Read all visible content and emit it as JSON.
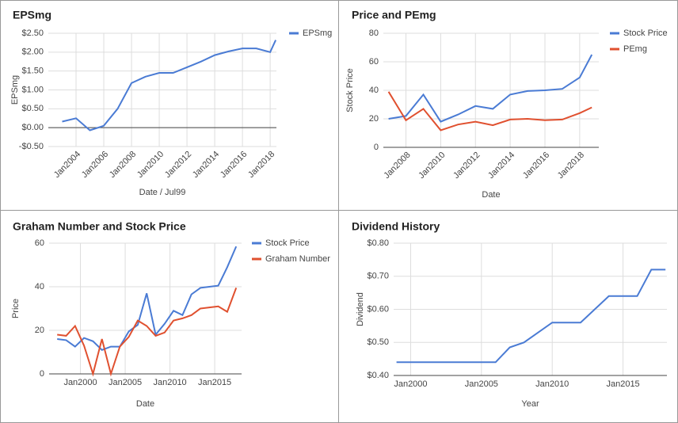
{
  "chart_data": [
    {
      "type": "line",
      "title": "EPSmg",
      "xlabel": "Date / Jul99",
      "ylabel": "EPSmg",
      "x": [
        2003,
        2004,
        2005,
        2006,
        2007,
        2008,
        2009,
        2010,
        2011,
        2012,
        2013,
        2014,
        2015,
        2016,
        2017,
        2018,
        2018.4
      ],
      "series": [
        {
          "name": "EPSmg",
          "color": "#4a7bd4",
          "values": [
            0.16,
            0.25,
            -0.07,
            0.05,
            0.5,
            1.18,
            1.35,
            1.45,
            1.45,
            1.6,
            1.75,
            1.92,
            2.02,
            2.1,
            2.1,
            2.0,
            2.32
          ]
        }
      ],
      "xlim": [
        2002,
        2018.45
      ],
      "xticks": [
        {
          "value": 2004,
          "label": "Jan2004"
        },
        {
          "value": 2006,
          "label": "Jan2006"
        },
        {
          "value": 2008,
          "label": "Jan2008"
        },
        {
          "value": 2010,
          "label": "Jan2010"
        },
        {
          "value": 2012,
          "label": "Jan2012"
        },
        {
          "value": 2014,
          "label": "Jan2014"
        },
        {
          "value": 2016,
          "label": "Jan2016"
        },
        {
          "value": 2018,
          "label": "Jan2018"
        }
      ],
      "ylim": [
        -0.5,
        2.5
      ],
      "yticks": [
        {
          "value": -0.5,
          "label": "-$0.50"
        },
        {
          "value": 0,
          "label": "$0.00"
        },
        {
          "value": 0.5,
          "label": "$0.50"
        },
        {
          "value": 1,
          "label": "$1.00"
        },
        {
          "value": 1.5,
          "label": "$1.50"
        },
        {
          "value": 2,
          "label": "$2.00"
        },
        {
          "value": 2.5,
          "label": "$2.50"
        }
      ],
      "grid": true,
      "legend": "right",
      "rotate_xticks": true
    },
    {
      "type": "line",
      "title": "Price and PEmg",
      "xlabel": "Date",
      "ylabel": "Stock Price",
      "x": [
        2007,
        2008,
        2009,
        2010,
        2011,
        2012,
        2013,
        2014,
        2015,
        2016,
        2017,
        2018,
        2018.7
      ],
      "series": [
        {
          "name": "Stock Price",
          "color": "#4a7bd4",
          "values": [
            20,
            22,
            37,
            18,
            23,
            29,
            27,
            37,
            39.5,
            40,
            41,
            49,
            65
          ]
        },
        {
          "name": "PEmg",
          "color": "#e0502f",
          "values": [
            39,
            19,
            27,
            12,
            16,
            18,
            15.5,
            19.5,
            20,
            19,
            19.5,
            24,
            28
          ]
        }
      ],
      "xlim": [
        2006.7,
        2019.1
      ],
      "xticks": [
        {
          "value": 2008,
          "label": "Jan2008"
        },
        {
          "value": 2010,
          "label": "Jan2010"
        },
        {
          "value": 2012,
          "label": "Jan2012"
        },
        {
          "value": 2014,
          "label": "Jan2014"
        },
        {
          "value": 2016,
          "label": "Jan2016"
        },
        {
          "value": 2018,
          "label": "Jan2018"
        }
      ],
      "ylim": [
        0,
        80
      ],
      "yticks": [
        0,
        20,
        40,
        60,
        80
      ],
      "grid": true,
      "legend": "right",
      "rotate_xticks": true
    },
    {
      "type": "line",
      "title": "Graham Number and Stock Price",
      "xlabel": "Date",
      "ylabel": "Price",
      "x": [
        1997.4,
        1998.4,
        1999.4,
        2000.4,
        2001.4,
        2002.4,
        2003.4,
        2004.4,
        2005.4,
        2006.4,
        2007.4,
        2008.4,
        2009.4,
        2010.4,
        2011.4,
        2012.4,
        2013.4,
        2014.4,
        2015.4,
        2016.4,
        2017.4
      ],
      "series": [
        {
          "name": "Stock Price",
          "color": "#4a7bd4",
          "values": [
            16,
            15.5,
            12.5,
            16.5,
            15,
            11,
            12.5,
            12.5,
            19.5,
            22.5,
            37,
            18,
            23,
            29,
            27,
            36.5,
            39.5,
            40,
            40.5,
            49,
            58.5
          ]
        },
        {
          "name": "Graham Number",
          "color": "#e0502f",
          "values": [
            18,
            17.5,
            22,
            13,
            0,
            16,
            0,
            12.5,
            17,
            24.5,
            22,
            17.5,
            19,
            24.5,
            25.5,
            27,
            30,
            30.5,
            31,
            28.5,
            39.5
          ]
        }
      ],
      "xlim": [
        1996.5,
        2018
      ],
      "xticks": [
        {
          "value": 2000,
          "label": "Jan2000"
        },
        {
          "value": 2005,
          "label": "Jan2005"
        },
        {
          "value": 2010,
          "label": "Jan2010"
        },
        {
          "value": 2015,
          "label": "Jan2015"
        }
      ],
      "ylim": [
        0,
        60
      ],
      "yticks": [
        0,
        20,
        40,
        60
      ],
      "grid": true,
      "legend": "right",
      "rotate_xticks": false
    },
    {
      "type": "line",
      "title": "Dividend History",
      "xlabel": "Year",
      "ylabel": "Dividend",
      "x": [
        1999,
        2000,
        2001,
        2002,
        2003,
        2004,
        2005,
        2006,
        2007,
        2008,
        2010,
        2012,
        2014,
        2016,
        2017,
        2018
      ],
      "series": [
        {
          "color": "#4a7bd4",
          "values": [
            0.44,
            0.44,
            0.44,
            0.44,
            0.44,
            0.44,
            0.44,
            0.44,
            0.485,
            0.5,
            0.56,
            0.56,
            0.64,
            0.64,
            0.72,
            0.72
          ]
        }
      ],
      "xlim": [
        1998.8,
        2018.1
      ],
      "xticks": [
        {
          "value": 2000,
          "label": "Jan2000"
        },
        {
          "value": 2005,
          "label": "Jan2005"
        },
        {
          "value": 2010,
          "label": "Jan2010"
        },
        {
          "value": 2015,
          "label": "Jan2015"
        }
      ],
      "ylim": [
        0.4,
        0.8
      ],
      "yticks": [
        {
          "value": 0.4,
          "label": "$0.40"
        },
        {
          "value": 0.5,
          "label": "$0.50"
        },
        {
          "value": 0.6,
          "label": "$0.60"
        },
        {
          "value": 0.7,
          "label": "$0.70"
        },
        {
          "value": 0.8,
          "label": "$0.80"
        }
      ],
      "grid": true,
      "rotate_xticks": false
    }
  ]
}
